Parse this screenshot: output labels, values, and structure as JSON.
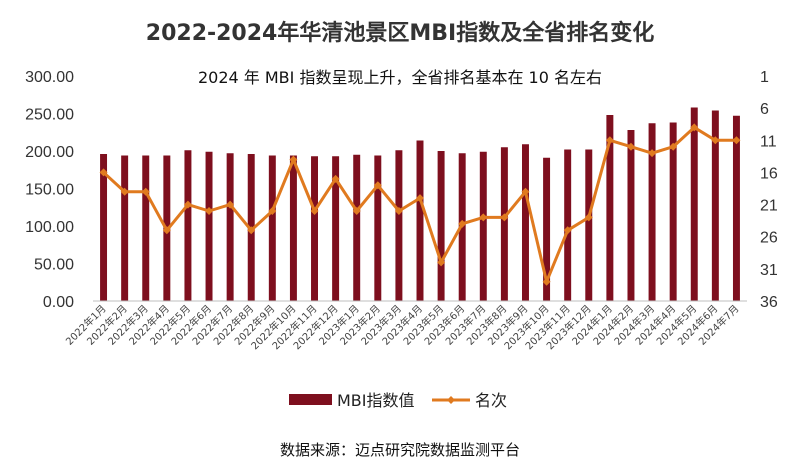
{
  "colors": {
    "bar": "#7e0f1e",
    "line": "#e07a1f",
    "text": "#333333",
    "axis": "#bfbfbf"
  },
  "source": "数据来源：迈点研究院数据监测平台",
  "chart_data": {
    "type": "bar",
    "title": "2022-2024年华清池景区MBI指数及全省排名变化",
    "subtitle": "2024 年 MBI 指数呈现上升，全省排名基本在 10 名左右",
    "categories": [
      "2022年1月",
      "2022年2月",
      "2022年3月",
      "2022年4月",
      "2022年5月",
      "2022年6月",
      "2022年7月",
      "2022年8月",
      "2022年9月",
      "2022年10月",
      "2022年11月",
      "2022年12月",
      "2023年1月",
      "2023年2月",
      "2023年3月",
      "2023年4月",
      "2023年5月",
      "2023年6月",
      "2023年7月",
      "2023年8月",
      "2023年9月",
      "2023年10月",
      "2023年11月",
      "2023年12月",
      "2024年1月",
      "2024年2月",
      "2024年3月",
      "2024年4月",
      "2024年5月",
      "2024年6月",
      "2024年7月"
    ],
    "series": [
      {
        "name": "MBI指数值",
        "type": "bar",
        "axis": "left",
        "values": [
          196,
          194,
          194,
          194,
          201,
          199,
          197,
          196,
          194,
          194,
          193,
          193,
          195,
          194,
          201,
          214,
          200,
          197,
          199,
          205,
          209,
          191,
          202,
          202,
          248,
          228,
          237,
          238,
          258,
          254,
          247
        ]
      },
      {
        "name": "名次",
        "type": "line",
        "axis": "right",
        "values": [
          16,
          19,
          19,
          25,
          21,
          22,
          21,
          25,
          22,
          14,
          22,
          17,
          22,
          18,
          22,
          20,
          30,
          24,
          23,
          23,
          19,
          33,
          25,
          23,
          11,
          12,
          13,
          12,
          9,
          11,
          11
        ]
      }
    ],
    "yleft": {
      "min": 0,
      "max": 300,
      "ticks": [
        "0.00",
        "50.00",
        "100.00",
        "150.00",
        "200.00",
        "250.00",
        "300.00"
      ]
    },
    "yright": {
      "min": 1,
      "max": 36,
      "reversed": true,
      "ticks": [
        "1",
        "6",
        "11",
        "16",
        "21",
        "26",
        "31",
        "36"
      ]
    },
    "legend": {
      "position": "bottom",
      "items": [
        "MBI指数值",
        "名次"
      ]
    },
    "grid": false
  }
}
